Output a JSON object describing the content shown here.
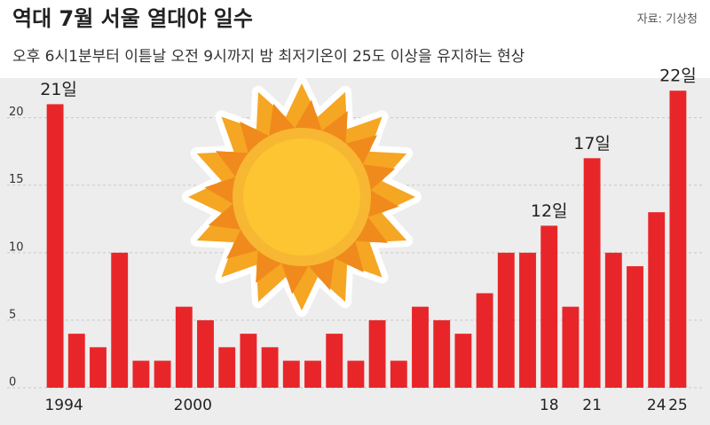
{
  "chart_data": {
    "type": "bar",
    "title": "역대 7월 서울 열대야 일수",
    "subtitle": "오후 6시1분부터 이튿날 오전 9시까지 밤 최저기온이 25도 이상을 유지하는 현상",
    "source": "자료: 기상청",
    "categories": [
      "1994",
      null,
      null,
      null,
      null,
      null,
      "2000",
      null,
      null,
      null,
      null,
      null,
      null,
      null,
      null,
      null,
      null,
      null,
      null,
      null,
      null,
      null,
      null,
      "18",
      null,
      "21",
      null,
      null,
      "24",
      "25"
    ],
    "values": [
      21,
      4,
      3,
      10,
      2,
      2,
      6,
      5,
      3,
      4,
      3,
      2,
      2,
      4,
      2,
      5,
      2,
      6,
      5,
      4,
      7,
      10,
      10,
      12,
      6,
      17,
      10,
      9,
      13,
      22
    ],
    "value_labels": [
      "21일",
      null,
      null,
      null,
      null,
      null,
      null,
      null,
      null,
      null,
      null,
      null,
      null,
      null,
      null,
      null,
      null,
      null,
      null,
      null,
      null,
      null,
      null,
      "12일",
      null,
      "17일",
      null,
      null,
      null,
      "22일"
    ],
    "color": "#e8262a",
    "ylim": [
      0,
      23
    ],
    "yticks": [
      0,
      5,
      10,
      15,
      20
    ],
    "grid": true
  }
}
